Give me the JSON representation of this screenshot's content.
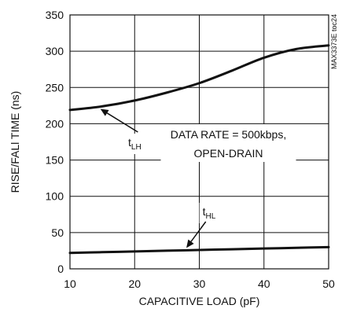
{
  "chart_data": {
    "type": "line",
    "xlabel": "CAPACITIVE LOAD (pF)",
    "ylabel": "RISE/FALl TIME (ns)",
    "xlim": [
      10,
      50
    ],
    "ylim": [
      0,
      350
    ],
    "x_ticks": [
      "10",
      "20",
      "30",
      "40",
      "50"
    ],
    "y_ticks": [
      "0",
      "50",
      "100",
      "150",
      "200",
      "250",
      "300",
      "350"
    ],
    "grid": true,
    "series": [
      {
        "name": "tLH",
        "label_main": "t",
        "label_sub": "LH",
        "x": [
          10,
          15,
          20,
          25,
          30,
          35,
          40,
          45,
          50
        ],
        "y": [
          219,
          224,
          232,
          243,
          256,
          273,
          291,
          303,
          308
        ]
      },
      {
        "name": "tHL",
        "label_main": "t",
        "label_sub": "HL",
        "x": [
          10,
          15,
          20,
          25,
          30,
          35,
          40,
          45,
          50
        ],
        "y": [
          22,
          23,
          24,
          25,
          26,
          27,
          28,
          29,
          30
        ]
      }
    ],
    "annotation_lines": [
      "DATA RATE = 500kbps,",
      "OPEN-DRAIN"
    ],
    "side_label": "MAX3373E toc24"
  }
}
